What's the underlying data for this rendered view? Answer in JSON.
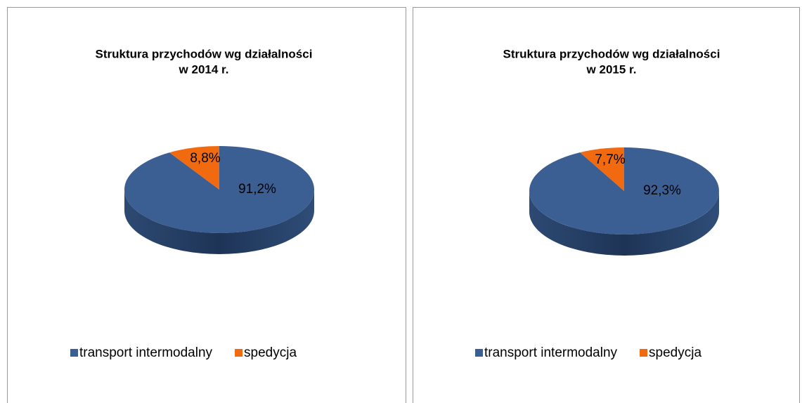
{
  "chart_data": [
    {
      "type": "pie",
      "title": [
        "Struktura przychodów wg działalności",
        "w 2014 r."
      ],
      "categories": [
        "transport intermodalny",
        "spedycja"
      ],
      "values": [
        91.2,
        8.8
      ],
      "value_labels": [
        "91,2%",
        "8,8%"
      ],
      "colors": [
        "#3b5f92",
        "#f26a10"
      ],
      "legend": "bottom"
    },
    {
      "type": "pie",
      "title": [
        "Struktura przychodów wg działalności",
        "w 2015 r."
      ],
      "categories": [
        "transport intermodalny",
        "spedycja"
      ],
      "values": [
        92.3,
        7.7
      ],
      "value_labels": [
        "92,3%",
        "7,7%"
      ],
      "colors": [
        "#3b5f92",
        "#f26a10"
      ],
      "legend": "bottom"
    }
  ]
}
